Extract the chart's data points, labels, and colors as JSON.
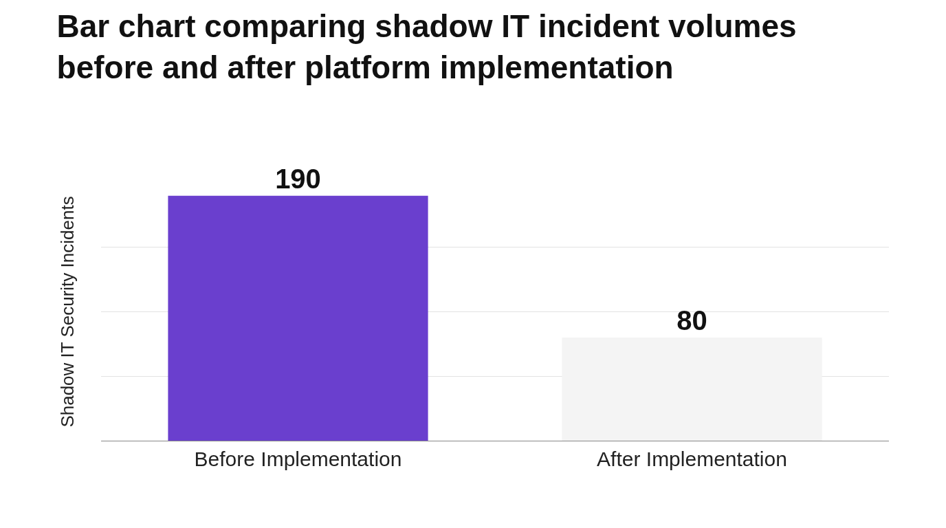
{
  "chart_data": {
    "type": "bar",
    "title": "Bar chart comparing shadow IT incident volumes before and after platform implementation",
    "ylabel": "Shadow IT Security Incidents",
    "categories": [
      "Before Implementation",
      "After Implementation"
    ],
    "values": [
      190,
      80
    ],
    "colors": [
      "#6a3fce",
      "#f4f4f4"
    ],
    "grid": "y",
    "tick_labels": "x",
    "data_labels": true
  }
}
